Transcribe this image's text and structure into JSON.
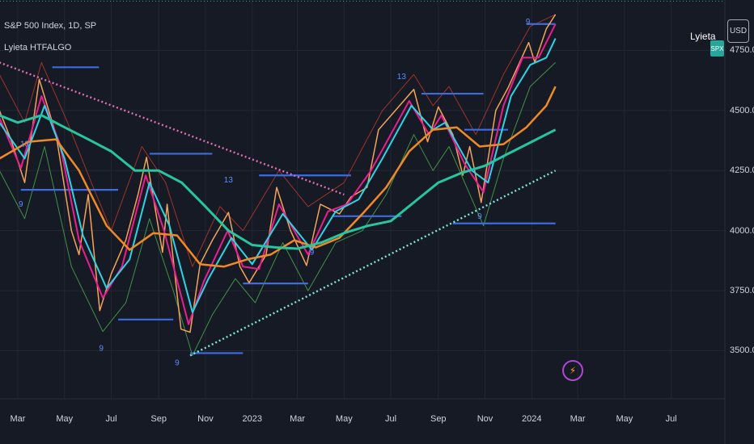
{
  "header": {
    "symbol_line": "S&P 500 Index, 1D, SP",
    "indicator_name": "Lyieta HTFALGO"
  },
  "right_panel": {
    "currency": "USD",
    "brand": "Lyieta",
    "symbol_tag": "SPX"
  },
  "icons": {
    "bolt": "lightning-bolt-icon"
  },
  "colors": {
    "background": "#161a25",
    "pink": "#e91e90",
    "orange": "#f08a24",
    "cyan": "#2ed3e6",
    "teal": "#26c6a0",
    "blue_levels": "#3d6be0",
    "price_line": "#f4a35a",
    "green_band": "#4caf50",
    "red_band": "#c0392b",
    "trend_dashed_teal": "#7ee7d4",
    "trend_dashed_pink": "#e06fb6"
  },
  "chart_data": {
    "type": "line",
    "title": "S&P 500 Index, 1D, SP",
    "xlabel": "",
    "ylabel": "",
    "y_axis_side": "right",
    "ylim": [
      3300,
      4960
    ],
    "yticks": [
      3500,
      3750,
      4000,
      4250,
      4500,
      4750
    ],
    "ytick_labels": [
      "3500.00",
      "3750.00",
      "4000.00",
      "4250.00",
      "4500.00",
      "4750.00"
    ],
    "xlim": [
      "2022-03-01",
      "2024-07-31"
    ],
    "xticks": [
      {
        "date": "2022-03-01",
        "label": "Mar"
      },
      {
        "date": "2022-05-01",
        "label": "May"
      },
      {
        "date": "2022-07-01",
        "label": "Jul"
      },
      {
        "date": "2022-09-01",
        "label": "Sep"
      },
      {
        "date": "2022-11-01",
        "label": "Nov"
      },
      {
        "date": "2023-01-01",
        "label": "2023"
      },
      {
        "date": "2023-03-01",
        "label": "Mar"
      },
      {
        "date": "2023-05-01",
        "label": "May"
      },
      {
        "date": "2023-07-01",
        "label": "Jul"
      },
      {
        "date": "2023-09-01",
        "label": "Sep"
      },
      {
        "date": "2023-11-01",
        "label": "Nov"
      },
      {
        "date": "2024-01-01",
        "label": "2024"
      },
      {
        "date": "2024-03-01",
        "label": "Mar"
      },
      {
        "date": "2024-05-01",
        "label": "May"
      },
      {
        "date": "2024-07-01",
        "label": "Jul"
      }
    ],
    "grid": true,
    "series": [
      {
        "role": "price",
        "color": "#f4a35a",
        "width": 1.5,
        "points": [
          [
            "2022-02-05",
            4500
          ],
          [
            "2022-02-20",
            4380
          ],
          [
            "2022-03-10",
            4200
          ],
          [
            "2022-03-29",
            4630
          ],
          [
            "2022-04-20",
            4400
          ],
          [
            "2022-05-10",
            4000
          ],
          [
            "2022-05-20",
            3900
          ],
          [
            "2022-06-01",
            4150
          ],
          [
            "2022-06-16",
            3667
          ],
          [
            "2022-07-01",
            3820
          ],
          [
            "2022-07-20",
            3960
          ],
          [
            "2022-08-05",
            4150
          ],
          [
            "2022-08-16",
            4305
          ],
          [
            "2022-09-06",
            3910
          ],
          [
            "2022-09-12",
            4110
          ],
          [
            "2022-09-30",
            3590
          ],
          [
            "2022-10-12",
            3577
          ],
          [
            "2022-10-25",
            3860
          ],
          [
            "2022-11-10",
            3960
          ],
          [
            "2022-12-01",
            4076
          ],
          [
            "2022-12-16",
            3850
          ],
          [
            "2022-12-28",
            3783
          ],
          [
            "2023-01-19",
            3898
          ],
          [
            "2023-02-02",
            4180
          ],
          [
            "2023-02-20",
            4000
          ],
          [
            "2023-03-13",
            3855
          ],
          [
            "2023-03-31",
            4110
          ],
          [
            "2023-04-25",
            4070
          ],
          [
            "2023-05-10",
            4140
          ],
          [
            "2023-05-31",
            4180
          ],
          [
            "2023-06-15",
            4420
          ],
          [
            "2023-07-31",
            4588
          ],
          [
            "2023-08-18",
            4370
          ],
          [
            "2023-09-01",
            4515
          ],
          [
            "2023-09-20",
            4400
          ],
          [
            "2023-10-03",
            4230
          ],
          [
            "2023-10-12",
            4350
          ],
          [
            "2023-10-27",
            4117
          ],
          [
            "2023-11-15",
            4500
          ],
          [
            "2023-12-01",
            4594
          ],
          [
            "2023-12-28",
            4783
          ],
          [
            "2024-01-05",
            4700
          ],
          [
            "2024-01-20",
            4840
          ],
          [
            "2024-02-01",
            4900
          ]
        ]
      },
      {
        "role": "fast-ma-pink",
        "color": "#e91e90",
        "width": 2,
        "points": [
          [
            "2022-02-05",
            4470
          ],
          [
            "2022-03-05",
            4260
          ],
          [
            "2022-04-01",
            4560
          ],
          [
            "2022-04-25",
            4360
          ],
          [
            "2022-05-20",
            3960
          ],
          [
            "2022-06-20",
            3720
          ],
          [
            "2022-07-15",
            3850
          ],
          [
            "2022-08-15",
            4230
          ],
          [
            "2022-09-08",
            4000
          ],
          [
            "2022-10-10",
            3610
          ],
          [
            "2022-10-30",
            3790
          ],
          [
            "2022-11-30",
            4000
          ],
          [
            "2022-12-20",
            3850
          ],
          [
            "2023-01-10",
            3840
          ],
          [
            "2023-02-05",
            4110
          ],
          [
            "2023-03-15",
            3900
          ],
          [
            "2023-04-10",
            4080
          ],
          [
            "2023-05-05",
            4110
          ],
          [
            "2023-06-05",
            4250
          ],
          [
            "2023-07-25",
            4540
          ],
          [
            "2023-08-20",
            4400
          ],
          [
            "2023-09-05",
            4480
          ],
          [
            "2023-10-05",
            4280
          ],
          [
            "2023-10-30",
            4160
          ],
          [
            "2023-11-25",
            4520
          ],
          [
            "2023-12-20",
            4720
          ],
          [
            "2024-01-10",
            4720
          ],
          [
            "2024-02-01",
            4860
          ]
        ]
      },
      {
        "role": "mid-ma-cyan",
        "color": "#2ed3e6",
        "width": 2,
        "points": [
          [
            "2022-02-05",
            4450
          ],
          [
            "2022-03-10",
            4300
          ],
          [
            "2022-04-05",
            4520
          ],
          [
            "2022-05-01",
            4300
          ],
          [
            "2022-05-25",
            3980
          ],
          [
            "2022-06-25",
            3760
          ],
          [
            "2022-07-25",
            3880
          ],
          [
            "2022-08-20",
            4200
          ],
          [
            "2022-09-15",
            4020
          ],
          [
            "2022-10-15",
            3660
          ],
          [
            "2022-11-05",
            3800
          ],
          [
            "2022-12-05",
            3970
          ],
          [
            "2023-01-01",
            3860
          ],
          [
            "2023-02-10",
            4070
          ],
          [
            "2023-03-20",
            3920
          ],
          [
            "2023-04-20",
            4080
          ],
          [
            "2023-05-20",
            4130
          ],
          [
            "2023-06-20",
            4300
          ],
          [
            "2023-07-28",
            4520
          ],
          [
            "2023-08-25",
            4420
          ],
          [
            "2023-09-10",
            4450
          ],
          [
            "2023-10-15",
            4250
          ],
          [
            "2023-11-05",
            4200
          ],
          [
            "2023-12-05",
            4560
          ],
          [
            "2023-12-30",
            4690
          ],
          [
            "2024-01-20",
            4720
          ],
          [
            "2024-02-01",
            4800
          ]
        ]
      },
      {
        "role": "slow-ma-orange",
        "color": "#f08a24",
        "width": 2.5,
        "points": [
          [
            "2022-02-05",
            4300
          ],
          [
            "2022-03-15",
            4370
          ],
          [
            "2022-04-20",
            4380
          ],
          [
            "2022-05-20",
            4250
          ],
          [
            "2022-06-25",
            4020
          ],
          [
            "2022-07-25",
            3920
          ],
          [
            "2022-08-25",
            3990
          ],
          [
            "2022-09-25",
            3980
          ],
          [
            "2022-10-25",
            3860
          ],
          [
            "2022-11-25",
            3850
          ],
          [
            "2022-12-25",
            3880
          ],
          [
            "2023-01-25",
            3900
          ],
          [
            "2023-02-25",
            3960
          ],
          [
            "2023-03-25",
            3930
          ],
          [
            "2023-04-25",
            3970
          ],
          [
            "2023-05-25",
            4070
          ],
          [
            "2023-06-25",
            4180
          ],
          [
            "2023-07-25",
            4330
          ],
          [
            "2023-08-25",
            4420
          ],
          [
            "2023-09-25",
            4430
          ],
          [
            "2023-10-25",
            4350
          ],
          [
            "2023-11-25",
            4360
          ],
          [
            "2023-12-25",
            4430
          ],
          [
            "2024-01-20",
            4520
          ],
          [
            "2024-02-01",
            4600
          ]
        ]
      },
      {
        "role": "long-ma-teal",
        "color": "#26c6a0",
        "width": 3,
        "points": [
          [
            "2022-02-05",
            4480
          ],
          [
            "2022-03-01",
            4450
          ],
          [
            "2022-04-01",
            4480
          ],
          [
            "2022-05-01",
            4430
          ],
          [
            "2022-06-01",
            4380
          ],
          [
            "2022-07-01",
            4330
          ],
          [
            "2022-08-01",
            4250
          ],
          [
            "2022-09-01",
            4250
          ],
          [
            "2022-10-01",
            4200
          ],
          [
            "2022-11-01",
            4100
          ],
          [
            "2022-12-01",
            4000
          ],
          [
            "2023-01-01",
            3940
          ],
          [
            "2023-02-01",
            3930
          ],
          [
            "2023-03-01",
            3925
          ],
          [
            "2023-04-01",
            3950
          ],
          [
            "2023-05-01",
            3990
          ],
          [
            "2023-06-01",
            4020
          ],
          [
            "2023-07-01",
            4040
          ],
          [
            "2023-08-01",
            4120
          ],
          [
            "2023-09-01",
            4200
          ],
          [
            "2023-10-01",
            4240
          ],
          [
            "2023-11-01",
            4270
          ],
          [
            "2023-12-01",
            4320
          ],
          [
            "2024-01-01",
            4370
          ],
          [
            "2024-02-01",
            4420
          ]
        ]
      },
      {
        "role": "upper-band-red",
        "color": "#c0392b",
        "width": 1,
        "points": [
          [
            "2022-02-05",
            4650
          ],
          [
            "2022-03-10",
            4450
          ],
          [
            "2022-04-01",
            4700
          ],
          [
            "2022-05-05",
            4450
          ],
          [
            "2022-06-05",
            4200
          ],
          [
            "2022-07-01",
            4000
          ],
          [
            "2022-08-10",
            4350
          ],
          [
            "2022-09-10",
            4200
          ],
          [
            "2022-10-15",
            3850
          ],
          [
            "2022-11-20",
            4100
          ],
          [
            "2022-12-20",
            4000
          ],
          [
            "2023-02-05",
            4250
          ],
          [
            "2023-03-15",
            4100
          ],
          [
            "2023-05-01",
            4200
          ],
          [
            "2023-06-20",
            4500
          ],
          [
            "2023-07-31",
            4650
          ],
          [
            "2023-08-25",
            4520
          ],
          [
            "2023-09-15",
            4600
          ],
          [
            "2023-10-20",
            4400
          ],
          [
            "2023-11-25",
            4650
          ],
          [
            "2023-12-30",
            4850
          ],
          [
            "2024-02-01",
            4900
          ]
        ]
      },
      {
        "role": "lower-band-green",
        "color": "#4caf50",
        "width": 1,
        "points": [
          [
            "2022-02-05",
            4250
          ],
          [
            "2022-03-10",
            4050
          ],
          [
            "2022-04-05",
            4350
          ],
          [
            "2022-05-10",
            3850
          ],
          [
            "2022-06-20",
            3580
          ],
          [
            "2022-07-20",
            3700
          ],
          [
            "2022-08-20",
            4050
          ],
          [
            "2022-09-20",
            3750
          ],
          [
            "2022-10-15",
            3480
          ],
          [
            "2022-11-10",
            3650
          ],
          [
            "2022-12-10",
            3800
          ],
          [
            "2023-01-05",
            3700
          ],
          [
            "2023-02-10",
            3950
          ],
          [
            "2023-03-15",
            3750
          ],
          [
            "2023-04-20",
            3950
          ],
          [
            "2023-05-25",
            4000
          ],
          [
            "2023-06-25",
            4150
          ],
          [
            "2023-07-31",
            4400
          ],
          [
            "2023-08-25",
            4250
          ],
          [
            "2023-09-15",
            4350
          ],
          [
            "2023-10-30",
            4020
          ],
          [
            "2023-11-25",
            4300
          ],
          [
            "2023-12-30",
            4600
          ],
          [
            "2024-02-01",
            4700
          ]
        ]
      }
    ],
    "trendlines": [
      {
        "role": "support-teal-dashed",
        "color": "#7ee7d4",
        "from": [
          "2022-10-12",
          3480
        ],
        "to": [
          "2024-02-01",
          4250
        ]
      },
      {
        "role": "resistance-pink-dashed",
        "color": "#e06fb6",
        "from": [
          "2022-02-05",
          4700
        ],
        "to": [
          "2023-05-01",
          4150
        ]
      }
    ],
    "level_lines": [
      {
        "value": 4680,
        "from": "2022-04-15",
        "to": "2022-06-15"
      },
      {
        "value": 4320,
        "from": "2022-08-20",
        "to": "2022-11-10"
      },
      {
        "value": 4170,
        "from": "2022-03-05",
        "to": "2022-07-10"
      },
      {
        "value": 3630,
        "from": "2022-07-10",
        "to": "2022-09-20"
      },
      {
        "value": 3490,
        "from": "2022-10-12",
        "to": "2022-12-20"
      },
      {
        "value": 3780,
        "from": "2022-12-20",
        "to": "2023-03-15"
      },
      {
        "value": 4230,
        "from": "2023-01-10",
        "to": "2023-05-10"
      },
      {
        "value": 4570,
        "from": "2023-08-10",
        "to": "2023-10-30"
      },
      {
        "value": 4420,
        "from": "2023-10-05",
        "to": "2023-12-01"
      },
      {
        "value": 4060,
        "from": "2023-04-15",
        "to": "2023-07-15"
      },
      {
        "value": 4030,
        "from": "2023-09-20",
        "to": "2024-02-01"
      },
      {
        "value": 4860,
        "from": "2023-12-25",
        "to": "2024-02-01"
      }
    ],
    "markers": [
      {
        "date": "2022-03-05",
        "value": 4100,
        "label": "9"
      },
      {
        "date": "2022-03-10",
        "value": 4350,
        "label": "13"
      },
      {
        "date": "2022-06-18",
        "value": 3500,
        "label": "9"
      },
      {
        "date": "2022-09-25",
        "value": 3440,
        "label": "9"
      },
      {
        "date": "2022-12-01",
        "value": 4200,
        "label": "13"
      },
      {
        "date": "2023-03-20",
        "value": 3900,
        "label": "9"
      },
      {
        "date": "2023-07-15",
        "value": 4630,
        "label": "13"
      },
      {
        "date": "2023-10-25",
        "value": 4050,
        "label": "9"
      },
      {
        "date": "2023-12-27",
        "value": 4860,
        "label": "9"
      }
    ],
    "last_value_line": 4955
  }
}
